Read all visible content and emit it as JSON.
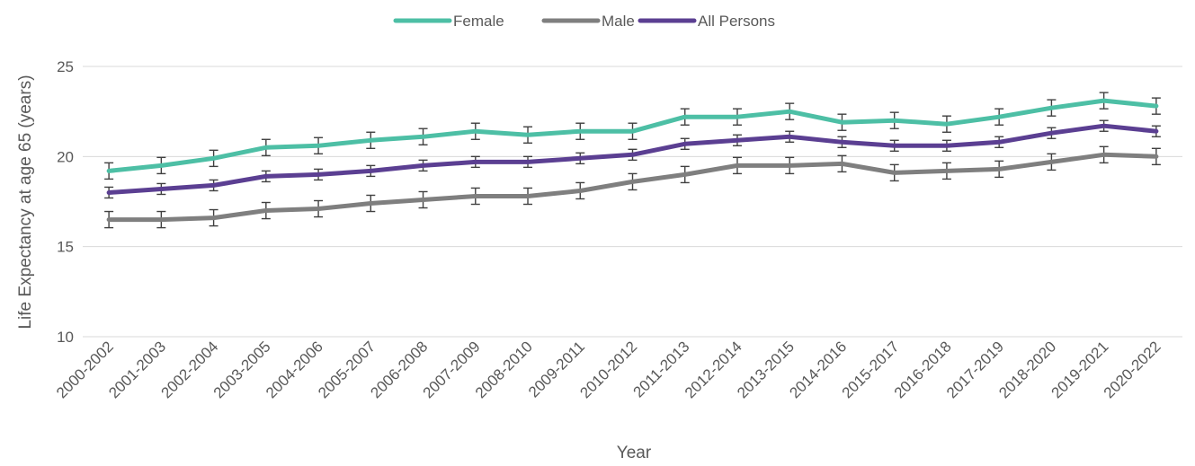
{
  "chart_data": {
    "type": "line",
    "title": "",
    "xlabel": "Year",
    "ylabel": "Life Expectancy at age 65 (years)",
    "ylim": [
      10,
      25
    ],
    "yticks": [
      10,
      15,
      20,
      25
    ],
    "grid": true,
    "legend_position": "top-center",
    "error_bars": true,
    "categories": [
      "2000-2002",
      "2001-2003",
      "2002-2004",
      "2003-2005",
      "2004-2006",
      "2005-2007",
      "2006-2008",
      "2007-2009",
      "2008-2010",
      "2009-2011",
      "2010-2012",
      "2011-2013",
      "2012-2014",
      "2013-2015",
      "2014-2016",
      "2015-2017",
      "2016-2018",
      "2017-2019",
      "2018-2020",
      "2019-2021",
      "2020-2022"
    ],
    "series": [
      {
        "name": "Female",
        "color": "#4dbfa5",
        "values": [
          19.2,
          19.5,
          19.9,
          20.5,
          20.6,
          20.9,
          21.1,
          21.4,
          21.2,
          21.4,
          21.4,
          22.2,
          22.2,
          22.5,
          21.9,
          22.0,
          21.8,
          22.2,
          22.7,
          23.1,
          22.8
        ],
        "error": 0.45
      },
      {
        "name": "Male",
        "color": "#7f7f7f",
        "values": [
          16.5,
          16.5,
          16.6,
          17.0,
          17.1,
          17.4,
          17.6,
          17.8,
          17.8,
          18.1,
          18.6,
          19.0,
          19.5,
          19.5,
          19.6,
          19.1,
          19.2,
          19.3,
          19.7,
          20.1,
          20.0
        ],
        "error": 0.45
      },
      {
        "name": "All Persons",
        "color": "#5b3f92",
        "values": [
          18.0,
          18.2,
          18.4,
          18.9,
          19.0,
          19.2,
          19.5,
          19.7,
          19.7,
          19.9,
          20.1,
          20.7,
          20.9,
          21.1,
          20.8,
          20.6,
          20.6,
          20.8,
          21.3,
          21.7,
          21.4
        ],
        "error": 0.3
      }
    ]
  }
}
